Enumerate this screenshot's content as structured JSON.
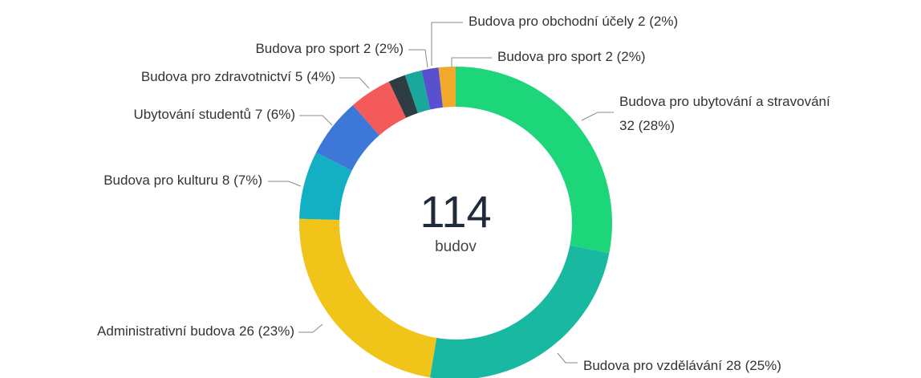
{
  "chart_data": {
    "type": "donut",
    "center_value": 114,
    "center_label": "budov",
    "categories": [
      "Budova pro ubytování a stravování",
      "Budova pro vzdělávání",
      "Administrativní budova",
      "Budova pro kulturu",
      "Ubytování studentů",
      "Budova pro zdravotnictví",
      null,
      "Budova pro sport",
      "Budova pro obchodní účely",
      "Budova pro sport"
    ],
    "values": [
      32,
      28,
      26,
      8,
      7,
      5,
      2,
      2,
      2,
      2
    ],
    "value_labels": [
      "32 (28%)",
      "28 (25%)",
      "26 (23%)",
      "8 (7%)",
      "7 (6%)",
      "5 (4%)",
      null,
      "2 (2%)",
      "2 (2%)",
      "2 (2%)"
    ],
    "colors": [
      "#1ed67a",
      "#19b9a1",
      "#f0c419",
      "#13afc3",
      "#3d78d9",
      "#f45a5a",
      "#2e3d44",
      "#1aa89d",
      "#5a4fcf",
      "#f0a92a"
    ]
  }
}
